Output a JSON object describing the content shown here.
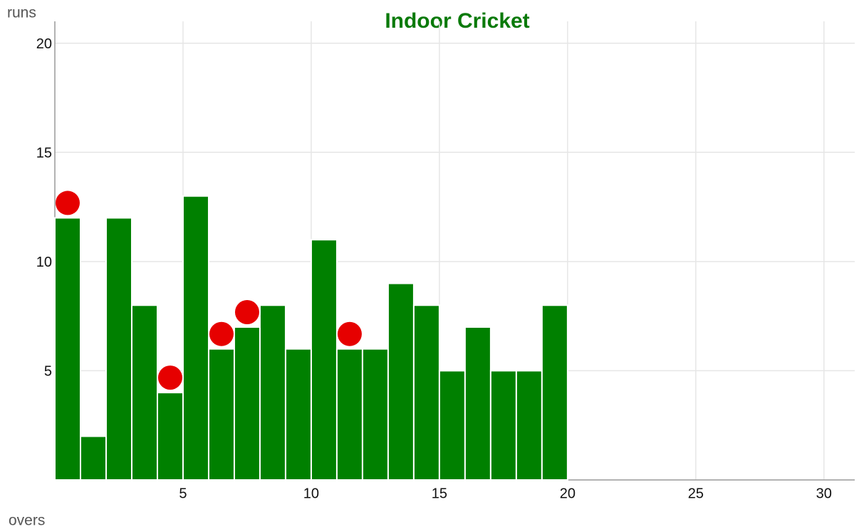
{
  "chart_data": {
    "type": "histogram",
    "title": "Indoor Cricket",
    "x_label": "overs",
    "y_label": "runs",
    "bins": [
      0,
      1,
      2,
      3,
      4,
      5,
      6,
      7,
      8,
      9,
      10,
      11,
      12,
      13,
      14,
      15,
      16,
      17,
      18,
      19,
      20
    ],
    "values": [
      12,
      2,
      12,
      8,
      4,
      13,
      6,
      7,
      8,
      6,
      11,
      6,
      6,
      9,
      8,
      5,
      7,
      5,
      5,
      8
    ],
    "color": "#008000",
    "wicket_overs": [
      1,
      5,
      7,
      8,
      12
    ],
    "wicket_color": "#e60000",
    "title_color": "#0a7a0a",
    "xlim": [
      0,
      31.2
    ],
    "xticks": [
      5,
      10,
      15,
      20,
      25,
      30
    ],
    "ylim": [
      0,
      21
    ],
    "yticks": [
      5,
      10,
      15,
      20
    ],
    "grid": true
  }
}
